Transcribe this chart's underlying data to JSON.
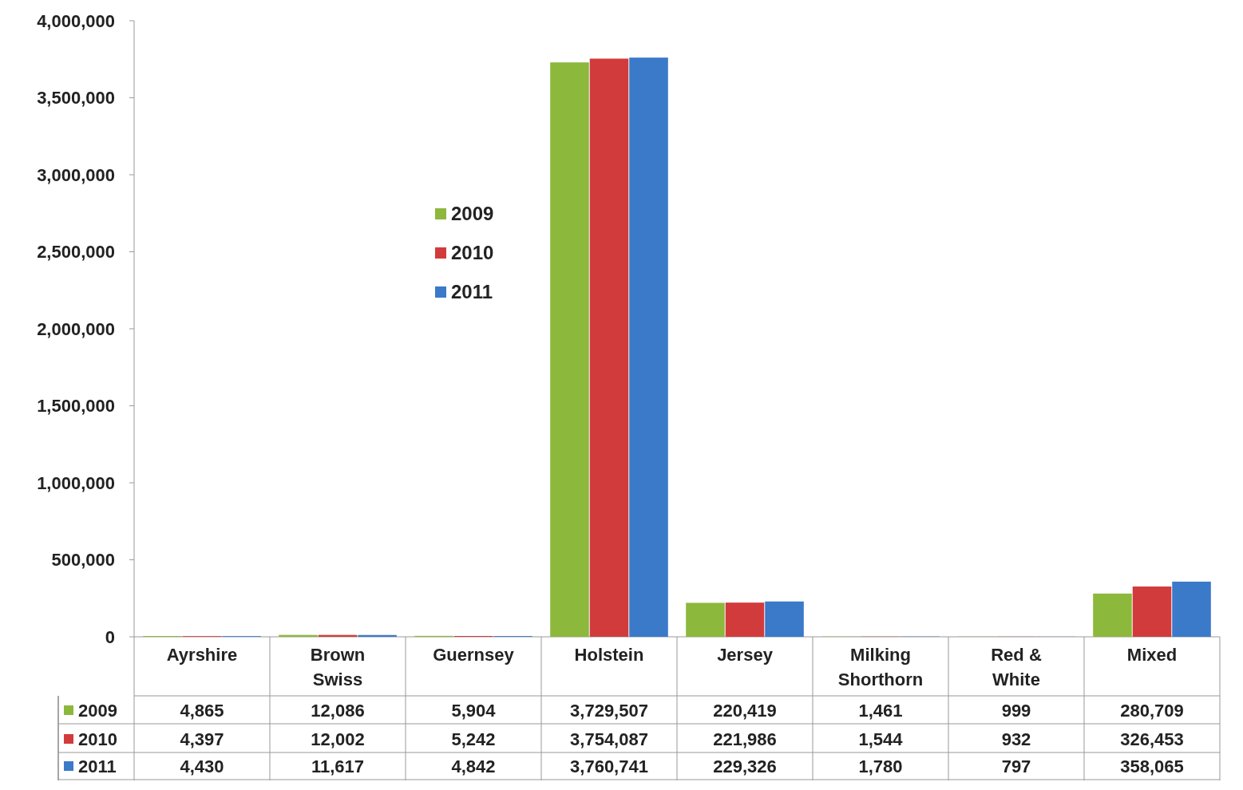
{
  "chart_data": {
    "type": "bar",
    "categories": [
      "Ayrshire",
      "Brown Swiss",
      "Guernsey",
      "Holstein",
      "Jersey",
      "Milking Shorthorn",
      "Red & White",
      "Mixed"
    ],
    "series": [
      {
        "name": "2009",
        "color": "#8cb83c",
        "values": [
          4865,
          12086,
          5904,
          3729507,
          220419,
          1461,
          999,
          280709
        ],
        "value_labels": [
          "4,865",
          "12,086",
          "5,904",
          "3,729,507",
          "220,419",
          "1,461",
          "999",
          "280,709"
        ]
      },
      {
        "name": "2010",
        "color": "#d23b3b",
        "values": [
          4397,
          12002,
          5242,
          3754087,
          221986,
          1544,
          932,
          326453
        ],
        "value_labels": [
          "4,397",
          "12,002",
          "5,242",
          "3,754,087",
          "221,986",
          "1,544",
          "932",
          "326,453"
        ]
      },
      {
        "name": "2011",
        "color": "#3b79c9",
        "values": [
          4430,
          11617,
          4842,
          3760741,
          229326,
          1780,
          797,
          358065
        ],
        "value_labels": [
          "4,430",
          "11,617",
          "4,842",
          "3,760,741",
          "229,326",
          "1,780",
          "797",
          "358,065"
        ]
      }
    ],
    "ylim": [
      0,
      4000000
    ],
    "yticks": [
      {
        "value": 0,
        "label": "0"
      },
      {
        "value": 500000,
        "label": "500,000"
      },
      {
        "value": 1000000,
        "label": "1,000,000"
      },
      {
        "value": 1500000,
        "label": "1,500,000"
      },
      {
        "value": 2000000,
        "label": "2,000,000"
      },
      {
        "value": 2500000,
        "label": "2,500,000"
      },
      {
        "value": 3000000,
        "label": "3,000,000"
      },
      {
        "value": 3500000,
        "label": "3,500,000"
      },
      {
        "value": 4000000,
        "label": "4,000,000"
      }
    ],
    "grid": false,
    "legend": "top left"
  }
}
